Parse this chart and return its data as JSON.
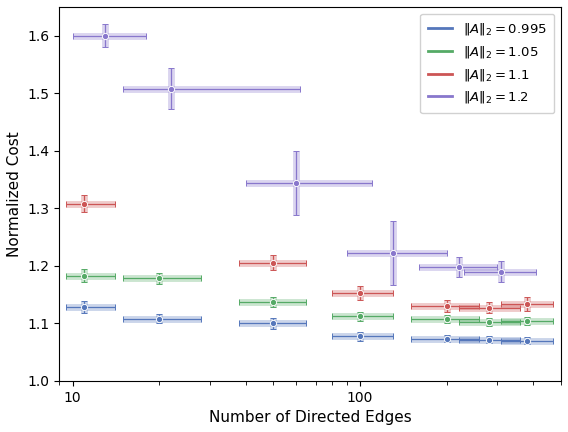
{
  "series": [
    {
      "label": "$\\|A\\|_2 = 0.995$",
      "color": "#5577bb",
      "x": [
        11,
        20,
        50,
        100,
        200,
        280,
        380
      ],
      "y": [
        1.128,
        1.108,
        1.1,
        1.077,
        1.073,
        1.071,
        1.07
      ],
      "xerr_lo": [
        1.5,
        5,
        12,
        20,
        50,
        60,
        70
      ],
      "xerr_hi": [
        3,
        8,
        15,
        30,
        60,
        80,
        90
      ],
      "yerr": [
        0.01,
        0.008,
        0.01,
        0.008,
        0.006,
        0.006,
        0.006
      ]
    },
    {
      "label": "$\\|A\\|_2 = 1.05$",
      "color": "#55aa66",
      "x": [
        11,
        20,
        50,
        100,
        200,
        280,
        380
      ],
      "y": [
        1.183,
        1.178,
        1.137,
        1.112,
        1.108,
        1.103,
        1.104
      ],
      "xerr_lo": [
        1.5,
        5,
        12,
        20,
        50,
        60,
        70
      ],
      "xerr_hi": [
        3,
        8,
        15,
        30,
        60,
        80,
        90
      ],
      "yerr": [
        0.012,
        0.01,
        0.009,
        0.008,
        0.007,
        0.007,
        0.007
      ]
    },
    {
      "label": "$\\|A\\|_2 = 1.1$",
      "color": "#cc5555",
      "x": [
        11,
        50,
        100,
        200,
        280,
        380
      ],
      "y": [
        1.308,
        1.205,
        1.152,
        1.13,
        1.127,
        1.133
      ],
      "xerr_lo": [
        1.5,
        12,
        20,
        50,
        60,
        70
      ],
      "xerr_hi": [
        3,
        15,
        30,
        60,
        80,
        90
      ],
      "yerr": [
        0.015,
        0.013,
        0.012,
        0.01,
        0.01,
        0.012
      ]
    },
    {
      "label": "$\\|A\\|_2 = 1.2$",
      "color": "#8877cc",
      "x": [
        13,
        22,
        60,
        130,
        220,
        310
      ],
      "y": [
        1.6,
        1.508,
        1.344,
        1.222,
        1.198,
        1.19
      ],
      "xerr_lo": [
        3,
        7,
        20,
        40,
        60,
        80
      ],
      "xerr_hi": [
        5,
        40,
        50,
        70,
        80,
        100
      ],
      "yerr": [
        0.02,
        0.035,
        0.055,
        0.055,
        0.018,
        0.018
      ]
    }
  ],
  "xlabel": "Number of Directed Edges",
  "ylabel": "Normalized Cost",
  "xlim": [
    9,
    500
  ],
  "ylim": [
    1.0,
    1.65
  ],
  "yticks": [
    1.0,
    1.1,
    1.2,
    1.3,
    1.4,
    1.5,
    1.6
  ],
  "figsize": [
    5.68,
    4.32
  ],
  "dpi": 100,
  "legend_loc": "upper right",
  "marker": "o",
  "markersize": 4.5,
  "linewidth": 1.8,
  "elinewidth": 0.9,
  "capsize": 2,
  "alpha_err": 0.3
}
